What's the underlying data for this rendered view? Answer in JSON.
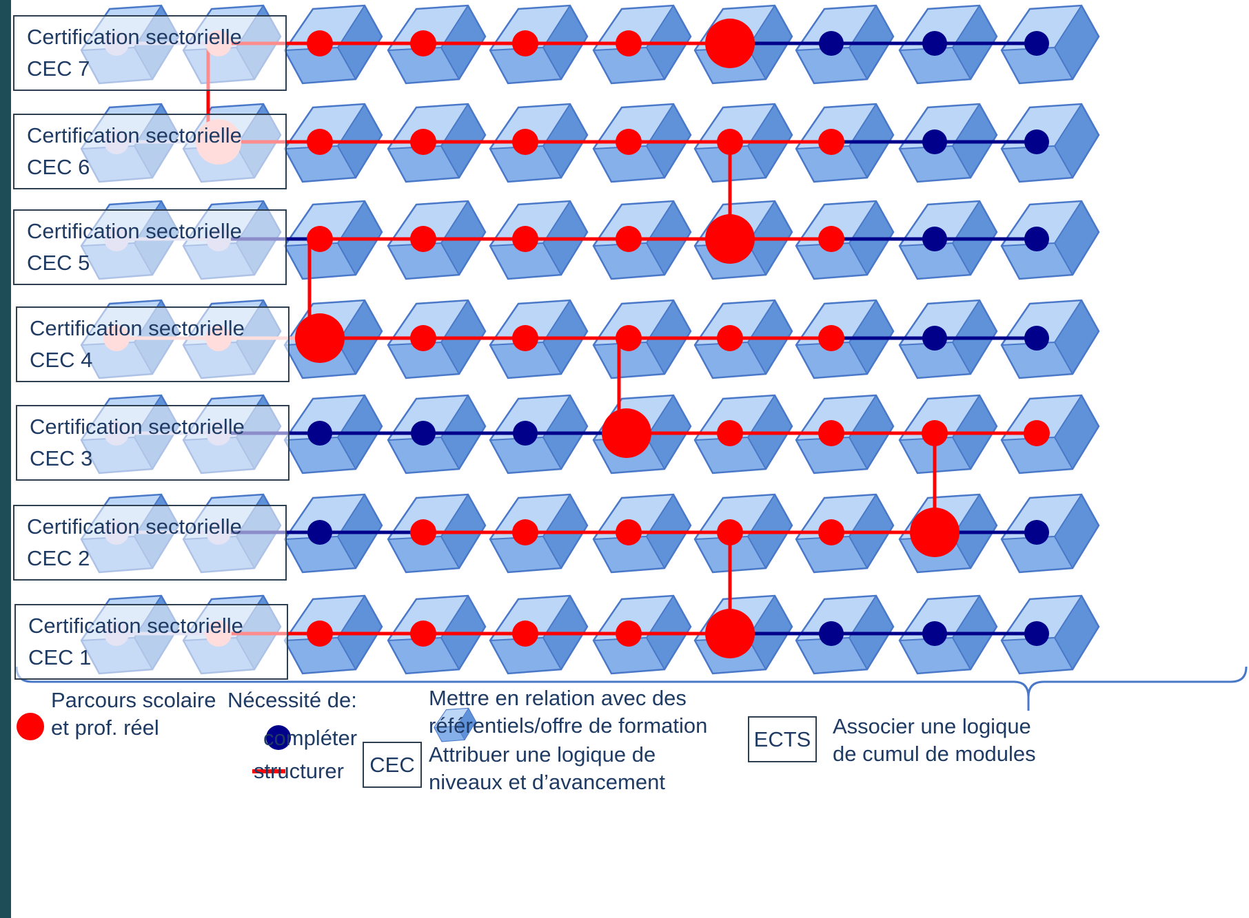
{
  "certifications": [
    {
      "title": "Certification sectorielle",
      "level": "CEC 7"
    },
    {
      "title": "Certification sectorielle",
      "level": "CEC 6"
    },
    {
      "title": "Certification sectorielle",
      "level": "CEC 5"
    },
    {
      "title": "Certification sectorielle",
      "level": "CEC 4"
    },
    {
      "title": "Certification sectorielle",
      "level": "CEC 3"
    },
    {
      "title": "Certification sectorielle",
      "level": "CEC 2"
    },
    {
      "title": "Certification sectorielle",
      "level": "CEC 1"
    }
  ],
  "legend": {
    "path_label_1": "Parcours scolaire",
    "path_label_2": "et prof. réel",
    "need_label": "Nécessité de:",
    "complete_label": "compléter",
    "structure_label": "structurer",
    "relate_label_1": "Mettre en relation avec des",
    "relate_label_2": "référentiels/offre de formation",
    "cec_box": "CEC",
    "levels_label_1": "Attribuer une logique de",
    "levels_label_2": "niveaux et d’avancement",
    "ects_box": "ECTS",
    "modules_label_1": "Associer une logique",
    "modules_label_2": "de cumul de modules"
  },
  "colors": {
    "red": "#ff0000",
    "navy": "#00008b",
    "cube_light": "#a8c8f4",
    "cube_mid": "#6f9fe0",
    "cube_dark": "#3f74c4",
    "cube_edge": "#4a78c8",
    "background": "#1e4d57"
  },
  "icons": [
    "cube-icon",
    "red-dot-icon",
    "navy-dot-icon",
    "red-line-icon",
    "curly-brace-icon"
  ]
}
